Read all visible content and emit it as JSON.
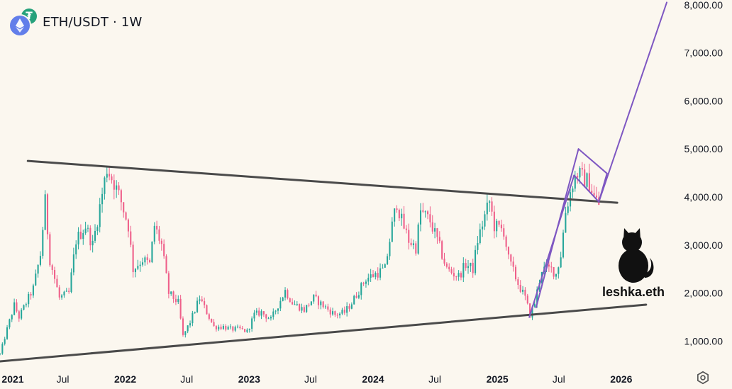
{
  "header": {
    "symbol": "ETH/USDT",
    "separator": "·",
    "interval": "1W",
    "base_icon": "ethereum-icon",
    "quote_icon": "tether-icon"
  },
  "watermark": {
    "text": "leshka.eth",
    "icon": "black-cat-icon"
  },
  "colors": {
    "background": "#fbf7ef",
    "up": "#26a69a",
    "down": "#ef5f8a",
    "trendline": "#4a4a4a",
    "projection": "#7e57c2",
    "axis_text": "#131722"
  },
  "chart_data": {
    "type": "candlestick",
    "interval": "1W",
    "x_axis": {
      "type": "time",
      "range": [
        "2020-12-28",
        "2026-05-15"
      ],
      "ticks": [
        {
          "date": "2021-01-01",
          "label": "2021",
          "bold": true
        },
        {
          "date": "2021-07-01",
          "label": "Jul",
          "bold": false
        },
        {
          "date": "2022-01-01",
          "label": "2022",
          "bold": true
        },
        {
          "date": "2022-07-01",
          "label": "Jul",
          "bold": false
        },
        {
          "date": "2023-01-01",
          "label": "2023",
          "bold": true
        },
        {
          "date": "2023-07-01",
          "label": "Jul",
          "bold": false
        },
        {
          "date": "2024-01-01",
          "label": "2024",
          "bold": true
        },
        {
          "date": "2024-07-01",
          "label": "Jul",
          "bold": false
        },
        {
          "date": "2025-01-01",
          "label": "2025",
          "bold": true
        },
        {
          "date": "2025-07-01",
          "label": "Jul",
          "bold": false
        },
        {
          "date": "2026-01-01",
          "label": "2026",
          "bold": true
        }
      ]
    },
    "y_axis": {
      "position": "right",
      "range": [
        550,
        8100
      ],
      "ticks": [
        {
          "value": 1000,
          "label": "1,000.00"
        },
        {
          "value": 2000,
          "label": "2,000.00"
        },
        {
          "value": 3000,
          "label": "3,000.00"
        },
        {
          "value": 4000,
          "label": "4,000.00"
        },
        {
          "value": 5000,
          "label": "5,000.00"
        },
        {
          "value": 6000,
          "label": "6,000.00"
        },
        {
          "value": 7000,
          "label": "7,000.00"
        },
        {
          "value": 8000,
          "label": "8,000.00"
        }
      ]
    },
    "grid": false,
    "close_path": [
      [
        "2020-12-28",
        730
      ],
      [
        "2021-01-18",
        1250
      ],
      [
        "2021-02-08",
        1750
      ],
      [
        "2021-02-22",
        1500
      ],
      [
        "2021-03-15",
        1800
      ],
      [
        "2021-04-05",
        2100
      ],
      [
        "2021-04-26",
        2800
      ],
      [
        "2021-05-10",
        3900
      ],
      [
        "2021-05-24",
        2700
      ],
      [
        "2021-06-21",
        1900
      ],
      [
        "2021-07-19",
        2000
      ],
      [
        "2021-08-09",
        3100
      ],
      [
        "2021-09-06",
        3400
      ],
      [
        "2021-09-27",
        3000
      ],
      [
        "2021-10-18",
        3800
      ],
      [
        "2021-11-08",
        4600
      ],
      [
        "2021-11-29",
        4300
      ],
      [
        "2021-12-20",
        3900
      ],
      [
        "2022-01-10",
        3400
      ],
      [
        "2022-01-24",
        2500
      ],
      [
        "2022-02-21",
        2700
      ],
      [
        "2022-03-14",
        2600
      ],
      [
        "2022-03-28",
        3400
      ],
      [
        "2022-04-18",
        3000
      ],
      [
        "2022-05-09",
        2000
      ],
      [
        "2022-06-06",
        1800
      ],
      [
        "2022-06-20",
        1100
      ],
      [
        "2022-07-11",
        1400
      ],
      [
        "2022-08-08",
        1900
      ],
      [
        "2022-08-29",
        1600
      ],
      [
        "2022-09-19",
        1300
      ],
      [
        "2022-10-17",
        1300
      ],
      [
        "2022-11-07",
        1250
      ],
      [
        "2022-12-05",
        1250
      ],
      [
        "2022-12-26",
        1200
      ],
      [
        "2023-01-16",
        1550
      ],
      [
        "2023-02-06",
        1600
      ],
      [
        "2023-03-06",
        1450
      ],
      [
        "2023-04-03",
        1850
      ],
      [
        "2023-04-17",
        2050
      ],
      [
        "2023-05-08",
        1800
      ],
      [
        "2023-06-12",
        1650
      ],
      [
        "2023-07-10",
        1900
      ],
      [
        "2023-08-14",
        1700
      ],
      [
        "2023-09-11",
        1550
      ],
      [
        "2023-10-09",
        1600
      ],
      [
        "2023-10-30",
        1800
      ],
      [
        "2023-11-20",
        2050
      ],
      [
        "2023-12-11",
        2300
      ],
      [
        "2024-01-08",
        2400
      ],
      [
        "2024-02-05",
        2500
      ],
      [
        "2024-02-26",
        3400
      ],
      [
        "2024-03-11",
        3900
      ],
      [
        "2024-03-25",
        3500
      ],
      [
        "2024-04-15",
        3100
      ],
      [
        "2024-05-06",
        2950
      ],
      [
        "2024-05-20",
        3700
      ],
      [
        "2024-06-17",
        3500
      ],
      [
        "2024-07-08",
        3100
      ],
      [
        "2024-08-05",
        2500
      ],
      [
        "2024-08-26",
        2400
      ],
      [
        "2024-09-09",
        2350
      ],
      [
        "2024-09-30",
        2600
      ],
      [
        "2024-10-21",
        2500
      ],
      [
        "2024-11-04",
        3100
      ],
      [
        "2024-11-25",
        3600
      ],
      [
        "2024-12-09",
        3900
      ],
      [
        "2024-12-23",
        3400
      ],
      [
        "2025-01-20",
        3300
      ],
      [
        "2025-02-03",
        2700
      ],
      [
        "2025-03-03",
        2200
      ],
      [
        "2025-03-24",
        1900
      ],
      [
        "2025-04-07",
        1550
      ],
      [
        "2025-04-21",
        1800
      ],
      [
        "2025-05-12",
        2500
      ],
      [
        "2025-06-09",
        2500
      ],
      [
        "2025-06-23",
        2400
      ],
      [
        "2025-07-07",
        2800
      ],
      [
        "2025-07-21",
        3700
      ],
      [
        "2025-08-11",
        4300
      ],
      [
        "2025-08-25",
        4500
      ],
      [
        "2025-09-08",
        4400
      ],
      [
        "2025-09-29",
        4300
      ],
      [
        "2025-10-13",
        4000
      ],
      [
        "2025-10-27",
        3850
      ]
    ],
    "lines": [
      {
        "name": "upper_trendline",
        "color": "#4a4a4a",
        "width": 3,
        "points": [
          [
            "2021-03-20",
            4750
          ],
          [
            "2025-12-20",
            3880
          ]
        ]
      },
      {
        "name": "lower_trendline",
        "color": "#4a4a4a",
        "width": 3,
        "points": [
          [
            "2020-12-28",
            580
          ],
          [
            "2026-03-15",
            1760
          ]
        ]
      },
      {
        "name": "impulse_left",
        "color": "#7e57c2",
        "width": 2,
        "points": [
          [
            "2025-04-05",
            1500
          ],
          [
            "2025-08-15",
            4450
          ]
        ]
      },
      {
        "name": "impulse_right",
        "color": "#7e57c2",
        "width": 2,
        "points": [
          [
            "2025-04-25",
            1700
          ],
          [
            "2025-08-28",
            5000
          ]
        ]
      },
      {
        "name": "flag_top",
        "color": "#7e57c2",
        "width": 2,
        "points": [
          [
            "2025-08-28",
            5000
          ],
          [
            "2025-11-20",
            4490
          ]
        ]
      },
      {
        "name": "flag_bottom",
        "color": "#7e57c2",
        "width": 2,
        "points": [
          [
            "2025-08-15",
            4450
          ],
          [
            "2025-10-27",
            3900
          ]
        ]
      },
      {
        "name": "flag_right",
        "color": "#7e57c2",
        "width": 2,
        "points": [
          [
            "2025-11-20",
            4490
          ],
          [
            "2025-10-27",
            3900
          ]
        ]
      },
      {
        "name": "projection",
        "color": "#7e57c2",
        "width": 2,
        "points": [
          [
            "2025-10-27",
            3900
          ],
          [
            "2026-05-15",
            8050
          ]
        ]
      }
    ]
  }
}
